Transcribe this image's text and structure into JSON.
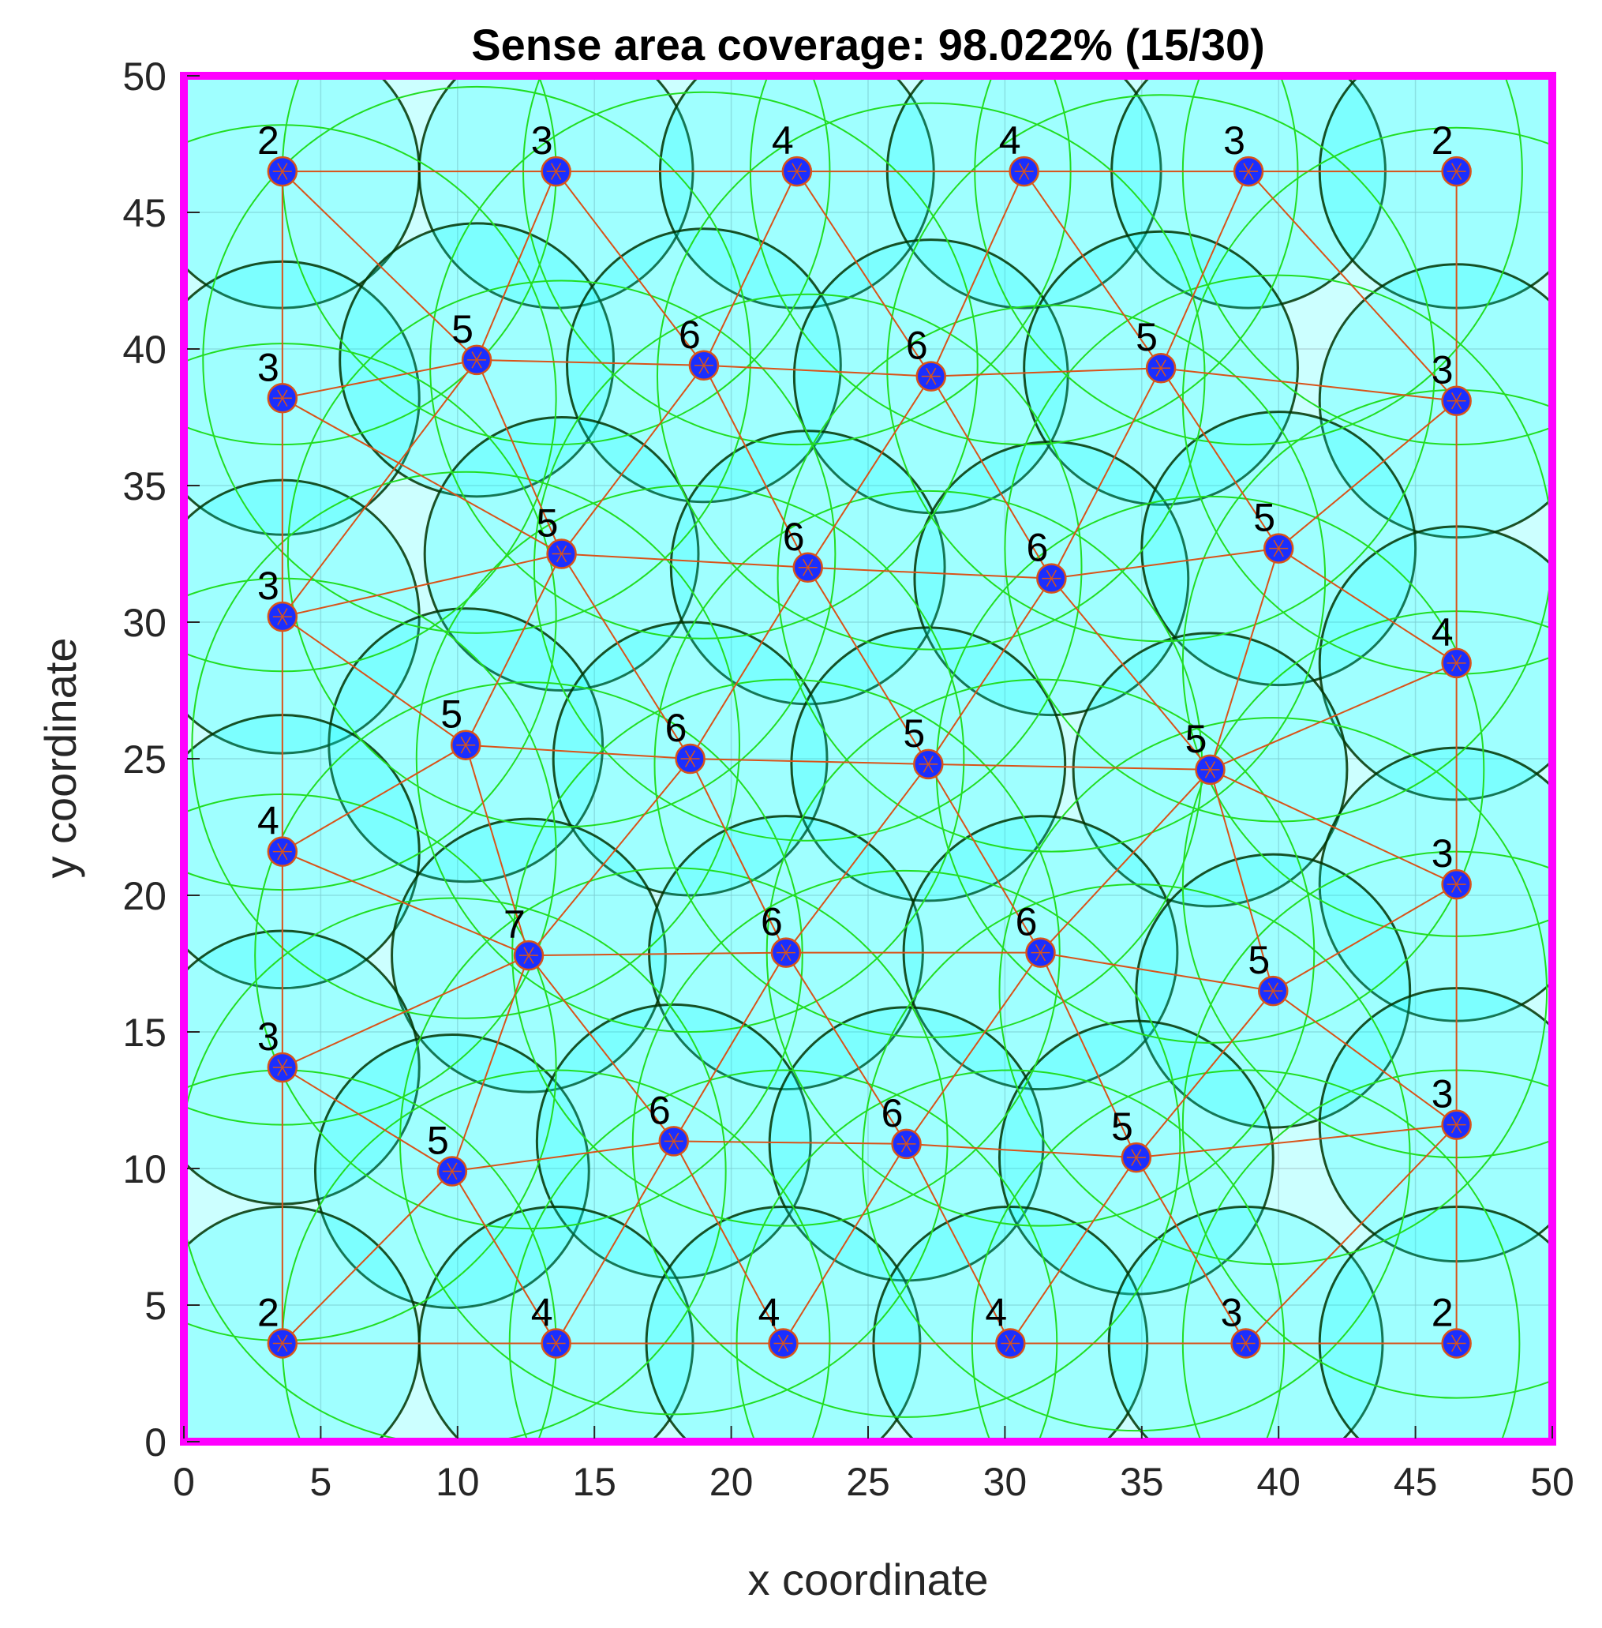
{
  "chart_data": {
    "type": "scatter",
    "title": "Sense area coverage: 98.022% (15/30)",
    "xlabel": "x coordinate",
    "ylabel": "y coordinate",
    "xlim": [
      0,
      50
    ],
    "ylim": [
      0,
      50
    ],
    "xticks": [
      0,
      5,
      10,
      15,
      20,
      25,
      30,
      35,
      40,
      45,
      50
    ],
    "yticks": [
      0,
      5,
      10,
      15,
      20,
      25,
      30,
      35,
      40,
      45,
      50
    ],
    "grid": true,
    "sense_radius": 5,
    "comm_radius": 10,
    "colors": {
      "frame": "#ff00ff",
      "background": "#ccffff",
      "sense_fill": "#00ffff",
      "sense_edge": "#003300",
      "comm_circle": "#22dd22",
      "link": "#d95319",
      "node_fill": "#1a2fff",
      "node_edge": "#d95319"
    },
    "nodes": [
      {
        "x": 3.6,
        "y": 46.5,
        "degree": "2"
      },
      {
        "x": 13.6,
        "y": 46.5,
        "degree": "3"
      },
      {
        "x": 22.4,
        "y": 46.5,
        "degree": "4"
      },
      {
        "x": 30.7,
        "y": 46.5,
        "degree": "4"
      },
      {
        "x": 38.9,
        "y": 46.5,
        "degree": "3"
      },
      {
        "x": 46.5,
        "y": 46.5,
        "degree": "2"
      },
      {
        "x": 3.6,
        "y": 38.2,
        "degree": "3"
      },
      {
        "x": 10.7,
        "y": 39.6,
        "degree": "5"
      },
      {
        "x": 19.0,
        "y": 39.4,
        "degree": "6"
      },
      {
        "x": 27.3,
        "y": 39.0,
        "degree": "6"
      },
      {
        "x": 35.7,
        "y": 39.3,
        "degree": "5"
      },
      {
        "x": 46.5,
        "y": 38.1,
        "degree": "3"
      },
      {
        "x": 3.6,
        "y": 30.2,
        "degree": "3"
      },
      {
        "x": 13.8,
        "y": 32.5,
        "degree": "5"
      },
      {
        "x": 22.8,
        "y": 32.0,
        "degree": "6"
      },
      {
        "x": 31.7,
        "y": 31.6,
        "degree": "6"
      },
      {
        "x": 40.0,
        "y": 32.7,
        "degree": "5"
      },
      {
        "x": 46.5,
        "y": 28.5,
        "degree": "4"
      },
      {
        "x": 10.3,
        "y": 25.5,
        "degree": "5"
      },
      {
        "x": 18.5,
        "y": 25.0,
        "degree": "6"
      },
      {
        "x": 27.2,
        "y": 24.8,
        "degree": "5"
      },
      {
        "x": 37.5,
        "y": 24.6,
        "degree": "5"
      },
      {
        "x": 3.6,
        "y": 21.6,
        "degree": "4"
      },
      {
        "x": 46.5,
        "y": 20.4,
        "degree": "3"
      },
      {
        "x": 12.6,
        "y": 17.8,
        "degree": "7"
      },
      {
        "x": 22.0,
        "y": 17.9,
        "degree": "6"
      },
      {
        "x": 31.3,
        "y": 17.9,
        "degree": "6"
      },
      {
        "x": 39.8,
        "y": 16.5,
        "degree": "5"
      },
      {
        "x": 3.6,
        "y": 13.7,
        "degree": "3"
      },
      {
        "x": 46.5,
        "y": 11.6,
        "degree": "3"
      },
      {
        "x": 9.8,
        "y": 9.9,
        "degree": "5"
      },
      {
        "x": 17.9,
        "y": 11.0,
        "degree": "6"
      },
      {
        "x": 26.4,
        "y": 10.9,
        "degree": "6"
      },
      {
        "x": 34.8,
        "y": 10.4,
        "degree": "5"
      },
      {
        "x": 3.6,
        "y": 3.6,
        "degree": "2"
      },
      {
        "x": 13.6,
        "y": 3.6,
        "degree": "4"
      },
      {
        "x": 21.9,
        "y": 3.6,
        "degree": "4"
      },
      {
        "x": 30.2,
        "y": 3.6,
        "degree": "4"
      },
      {
        "x": 38.8,
        "y": 3.6,
        "degree": "3"
      },
      {
        "x": 46.5,
        "y": 3.6,
        "degree": "2"
      }
    ]
  }
}
